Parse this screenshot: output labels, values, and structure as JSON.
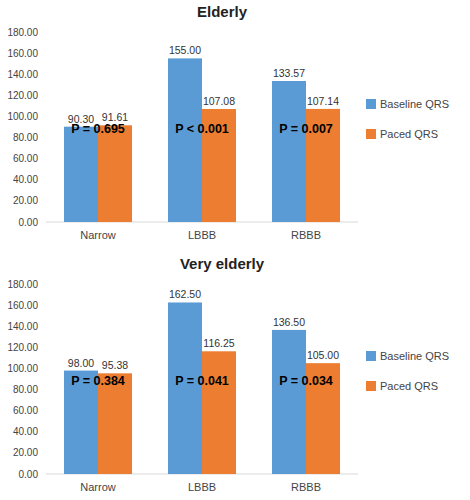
{
  "chart_data": [
    {
      "type": "bar",
      "title": "Elderly",
      "categories": [
        "Narrow",
        "LBBB",
        "RBBB"
      ],
      "series": [
        {
          "name": "Baseline QRS",
          "color": "#5b9bd5",
          "values": [
            90.3,
            155.0,
            133.57
          ],
          "value_labels": [
            "90.30",
            "155.00",
            "133.57"
          ]
        },
        {
          "name": "Paced QRS",
          "color": "#ed7d31",
          "values": [
            91.61,
            107.08,
            107.14
          ],
          "value_labels": [
            "91.61",
            "107.08",
            "107.14"
          ]
        }
      ],
      "annotations": [
        "P = 0.695",
        "P < 0.001",
        "P = 0.007"
      ],
      "ylim": [
        0,
        180
      ],
      "yticks": [
        {
          "value": 0,
          "label": "0.00"
        },
        {
          "value": 20,
          "label": "20.00"
        },
        {
          "value": 40,
          "label": "40.00"
        },
        {
          "value": 60,
          "label": "60.00"
        },
        {
          "value": 80,
          "label": "80.00"
        },
        {
          "value": 100,
          "label": "100.00"
        },
        {
          "value": 120,
          "label": "120.00"
        },
        {
          "value": 140,
          "label": "140.00"
        },
        {
          "value": 160,
          "label": "160.00"
        },
        {
          "value": 180,
          "label": "180.00"
        }
      ],
      "grid": false,
      "legend": "right",
      "data_labels": true
    },
    {
      "type": "bar",
      "title": "Very elderly",
      "categories": [
        "Narrow",
        "LBBB",
        "RBBB"
      ],
      "series": [
        {
          "name": "Baseline QRS",
          "color": "#5b9bd5",
          "values": [
            98.0,
            162.5,
            136.5
          ],
          "value_labels": [
            "98.00",
            "162.50",
            "136.50"
          ]
        },
        {
          "name": "Paced QRS",
          "color": "#ed7d31",
          "values": [
            95.38,
            116.25,
            105.0
          ],
          "value_labels": [
            "95.38",
            "116.25",
            "105.00"
          ]
        }
      ],
      "annotations": [
        "P = 0.384",
        "P = 0.041",
        "P = 0.034"
      ],
      "ylim": [
        0,
        180
      ],
      "yticks": [
        {
          "value": 0,
          "label": "0.00"
        },
        {
          "value": 20,
          "label": "20.00"
        },
        {
          "value": 40,
          "label": "40.00"
        },
        {
          "value": 60,
          "label": "60.00"
        },
        {
          "value": 80,
          "label": "80.00"
        },
        {
          "value": 100,
          "label": "100.00"
        },
        {
          "value": 120,
          "label": "120.00"
        },
        {
          "value": 140,
          "label": "140.00"
        },
        {
          "value": 160,
          "label": "160.00"
        },
        {
          "value": 180,
          "label": "180.00"
        }
      ],
      "grid": false,
      "legend": "right",
      "data_labels": true
    }
  ]
}
